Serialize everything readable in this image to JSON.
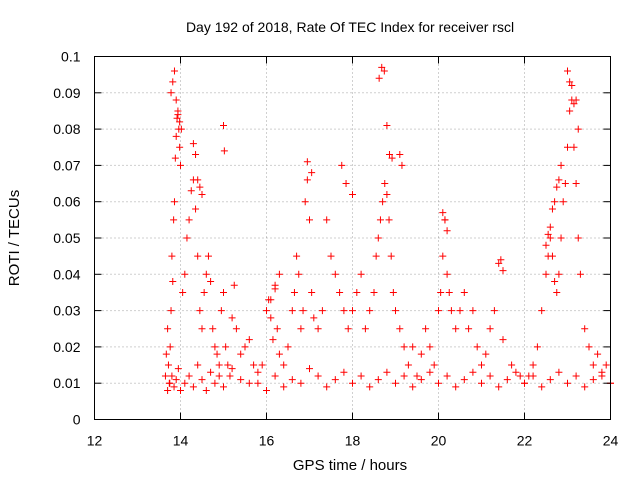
{
  "chart_data": {
    "type": "scatter",
    "title": "Day 192 of 2018, Rate Of TEC Index for receiver rscl",
    "xlabel": "GPS time / hours",
    "ylabel": "ROTI / TECUs",
    "xlim": [
      12,
      24
    ],
    "ylim": [
      0,
      0.1
    ],
    "xticks": [
      12,
      14,
      16,
      18,
      20,
      22,
      24
    ],
    "yticks": [
      0,
      0.01,
      0.02,
      0.03,
      0.04,
      0.05,
      0.06,
      0.07,
      0.08,
      0.09,
      0.1
    ],
    "xtick_labels": [
      "12",
      "14",
      "16",
      "18",
      "20",
      "22",
      "24"
    ],
    "ytick_labels": [
      "0",
      "0.01",
      "0.02",
      "0.03",
      "0.04",
      "0.05",
      "0.06",
      "0.07",
      "0.08",
      "0.09",
      "0.1"
    ],
    "grid": true,
    "marker": "+",
    "color": "#ff0000",
    "series": [
      {
        "name": "ROTI",
        "x": [
          13.65,
          13.67,
          13.7,
          13.72,
          13.74,
          13.76,
          13.78,
          13.8,
          13.82,
          13.84,
          13.86,
          13.88,
          13.9,
          13.92,
          13.94,
          13.96,
          13.98,
          14.0,
          14.05,
          14.1,
          14.15,
          14.2,
          14.25,
          14.3,
          14.35,
          14.4,
          14.45,
          14.5,
          14.55,
          14.6,
          14.65,
          14.7,
          14.75,
          14.8,
          14.85,
          14.9,
          14.95,
          15.0,
          15.05,
          15.1,
          15.15,
          15.2,
          15.25,
          15.3,
          15.4,
          15.5,
          15.6,
          15.7,
          15.8,
          15.9,
          16.0,
          16.05,
          16.1,
          16.15,
          16.2,
          16.25,
          16.3,
          16.4,
          16.5,
          16.6,
          16.65,
          16.7,
          16.75,
          16.8,
          16.85,
          16.9,
          16.95,
          17.0,
          17.05,
          17.1,
          17.2,
          17.3,
          17.4,
          17.5,
          17.6,
          17.7,
          17.8,
          17.9,
          18.0,
          18.1,
          18.2,
          18.3,
          18.4,
          18.5,
          18.55,
          18.6,
          18.65,
          18.7,
          18.75,
          18.8,
          18.85,
          18.9,
          18.95,
          19.0,
          19.1,
          19.2,
          19.3,
          19.4,
          19.5,
          19.6,
          19.7,
          19.8,
          19.9,
          20.0,
          20.05,
          20.1,
          20.15,
          20.2,
          20.25,
          20.3,
          20.4,
          20.5,
          20.6,
          20.7,
          20.8,
          20.9,
          21.0,
          21.1,
          21.2,
          21.3,
          21.5,
          21.7,
          21.9,
          22.0,
          22.1,
          22.2,
          22.3,
          22.4,
          22.5,
          22.55,
          22.6,
          22.65,
          22.7,
          22.75,
          22.8,
          22.85,
          22.9,
          22.95,
          23.0,
          23.05,
          23.1,
          23.15,
          23.2,
          23.25,
          23.3,
          23.4,
          23.5,
          23.6,
          23.7,
          23.8,
          23.9,
          24.0,
          13.7,
          13.75,
          13.8,
          13.85,
          13.9,
          13.95,
          14.0,
          14.1,
          14.2,
          14.3,
          14.4,
          14.5,
          14.6,
          14.7,
          14.8,
          14.9,
          15.0,
          15.2,
          15.4,
          15.6,
          15.8,
          16.0,
          16.2,
          16.4,
          16.6,
          16.8,
          17.0,
          17.2,
          17.4,
          17.6,
          17.8,
          18.0,
          18.2,
          18.4,
          18.6,
          18.8,
          19.0,
          19.2,
          19.4,
          19.6,
          19.8,
          20.0,
          20.2,
          20.4,
          20.6,
          20.8,
          21.0,
          21.2,
          21.4,
          21.6,
          21.8,
          22.0,
          22.2,
          22.4,
          22.6,
          22.8,
          23.0,
          23.2,
          23.4,
          23.6,
          23.8,
          24.0,
          13.78,
          13.82,
          13.86,
          13.9,
          13.94,
          13.98,
          14.02,
          18.62,
          18.68,
          18.74,
          18.8,
          18.86,
          18.92,
          23.0,
          23.05,
          23.1,
          23.15,
          23.2,
          23.25,
          14.3,
          14.35,
          14.4,
          14.45,
          14.5,
          15.0,
          15.02,
          16.95,
          17.05,
          17.75,
          17.85,
          18.0,
          19.1,
          19.15,
          20.1,
          20.15,
          20.2,
          22.5,
          22.55,
          22.6,
          22.65,
          22.7,
          22.75,
          22.8,
          22.85,
          16.1,
          16.2,
          16.3,
          21.4,
          21.45,
          21.5
        ],
        "y": [
          0.012,
          0.018,
          0.025,
          0.015,
          0.01,
          0.02,
          0.03,
          0.045,
          0.038,
          0.055,
          0.06,
          0.072,
          0.078,
          0.083,
          0.085,
          0.08,
          0.075,
          0.07,
          0.035,
          0.04,
          0.05,
          0.055,
          0.063,
          0.066,
          0.058,
          0.045,
          0.03,
          0.025,
          0.035,
          0.04,
          0.045,
          0.038,
          0.025,
          0.02,
          0.018,
          0.015,
          0.03,
          0.035,
          0.02,
          0.015,
          0.012,
          0.028,
          0.037,
          0.025,
          0.018,
          0.02,
          0.022,
          0.015,
          0.01,
          0.015,
          0.03,
          0.033,
          0.028,
          0.022,
          0.036,
          0.025,
          0.018,
          0.015,
          0.02,
          0.03,
          0.035,
          0.045,
          0.04,
          0.025,
          0.03,
          0.06,
          0.066,
          0.055,
          0.035,
          0.028,
          0.025,
          0.03,
          0.055,
          0.045,
          0.04,
          0.035,
          0.03,
          0.025,
          0.03,
          0.035,
          0.04,
          0.025,
          0.03,
          0.035,
          0.045,
          0.05,
          0.055,
          0.06,
          0.065,
          0.062,
          0.055,
          0.045,
          0.035,
          0.03,
          0.025,
          0.02,
          0.015,
          0.02,
          0.012,
          0.018,
          0.025,
          0.02,
          0.015,
          0.03,
          0.035,
          0.045,
          0.055,
          0.04,
          0.035,
          0.03,
          0.025,
          0.03,
          0.035,
          0.025,
          0.03,
          0.02,
          0.015,
          0.018,
          0.025,
          0.03,
          0.022,
          0.015,
          0.012,
          0.01,
          0.012,
          0.015,
          0.02,
          0.03,
          0.04,
          0.045,
          0.05,
          0.045,
          0.038,
          0.035,
          0.04,
          0.05,
          0.06,
          0.065,
          0.075,
          0.085,
          0.088,
          0.075,
          0.065,
          0.05,
          0.04,
          0.025,
          0.02,
          0.015,
          0.018,
          0.012,
          0.015,
          0.01,
          0.008,
          0.01,
          0.012,
          0.009,
          0.011,
          0.014,
          0.008,
          0.01,
          0.012,
          0.009,
          0.015,
          0.011,
          0.008,
          0.013,
          0.01,
          0.012,
          0.009,
          0.014,
          0.011,
          0.01,
          0.013,
          0.008,
          0.012,
          0.009,
          0.011,
          0.01,
          0.014,
          0.012,
          0.009,
          0.011,
          0.013,
          0.01,
          0.012,
          0.009,
          0.011,
          0.013,
          0.01,
          0.012,
          0.009,
          0.011,
          0.013,
          0.01,
          0.012,
          0.009,
          0.011,
          0.013,
          0.01,
          0.012,
          0.009,
          0.011,
          0.013,
          0.01,
          0.012,
          0.009,
          0.011,
          0.013,
          0.01,
          0.012,
          0.009,
          0.011,
          0.013,
          0.01,
          0.09,
          0.093,
          0.096,
          0.088,
          0.084,
          0.082,
          0.08,
          0.094,
          0.097,
          0.096,
          0.081,
          0.073,
          0.072,
          0.096,
          0.093,
          0.092,
          0.087,
          0.088,
          0.08,
          0.076,
          0.073,
          0.066,
          0.064,
          0.062,
          0.081,
          0.074,
          0.071,
          0.068,
          0.07,
          0.065,
          0.062,
          0.073,
          0.07,
          0.057,
          0.055,
          0.052,
          0.048,
          0.051,
          0.053,
          0.058,
          0.06,
          0.064,
          0.066,
          0.07,
          0.033,
          0.037,
          0.04,
          0.043,
          0.044,
          0.041
        ]
      }
    ]
  }
}
